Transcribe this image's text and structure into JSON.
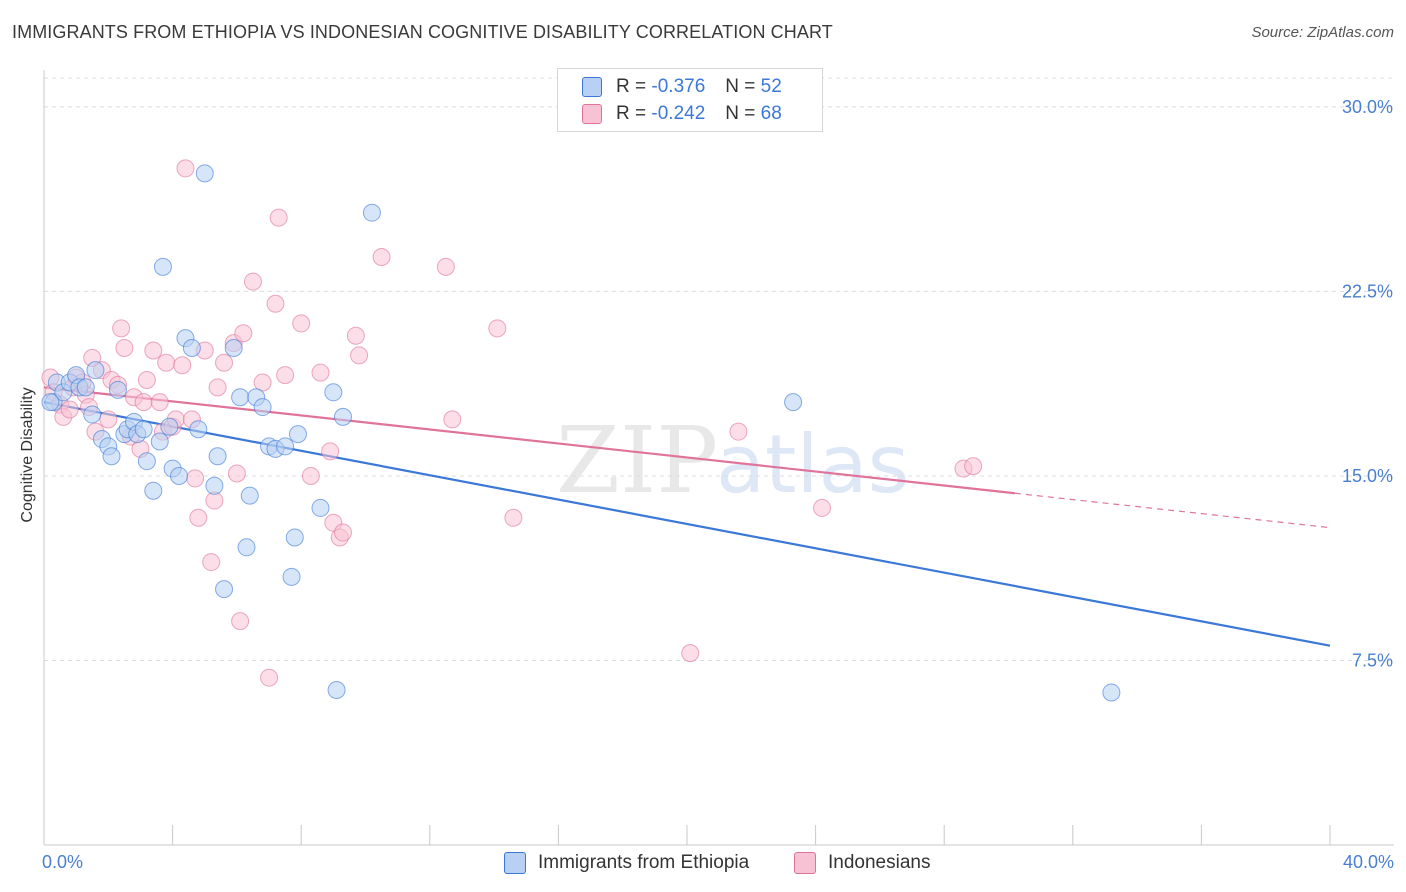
{
  "title": "IMMIGRANTS FROM ETHIOPIA VS INDONESIAN COGNITIVE DISABILITY CORRELATION CHART",
  "source": "Source: ZipAtlas.com",
  "legend": {
    "rows": [
      {
        "r_label": "R =",
        "r_value": "-0.376",
        "n_label": "N =",
        "n_value": "52"
      },
      {
        "r_label": "R =",
        "r_value": "-0.242",
        "n_label": "N =",
        "n_value": "68"
      }
    ]
  },
  "bottom_legend": [
    "Immigrants from Ethiopia",
    "Indonesians"
  ],
  "x_min_label": "0.0%",
  "x_max_label": "40.0%",
  "watermark": {
    "zip": "ZIP",
    "atlas": "atlas"
  },
  "colors": {
    "blue": "#3b78d8",
    "blue_fill": "#b7d0f3",
    "pink": "#e0739a",
    "pink_fill": "#f7c3d4",
    "grid": "#dcdcdc",
    "tick_label": "#4a7fd0"
  },
  "chart_data": {
    "type": "scatter",
    "title": "IMMIGRANTS FROM ETHIOPIA VS INDONESIAN COGNITIVE DISABILITY CORRELATION CHART",
    "xlabel": "",
    "ylabel": "Cognitive Disability",
    "xlim": [
      0,
      40
    ],
    "ylim": [
      0,
      31.5
    ],
    "yticks": [
      7.5,
      15.0,
      22.5,
      30.0
    ],
    "ytick_labels": [
      "7.5%",
      "15.0%",
      "22.5%",
      "30.0%"
    ],
    "grid": true,
    "legend_position": "top-center",
    "series": [
      {
        "name": "Immigrants from Ethiopia",
        "r": -0.376,
        "n": 52,
        "trend": {
          "x0": 0,
          "y0": 18.0,
          "x1": 40,
          "y1": 8.1,
          "solid_to": 40
        },
        "points": [
          [
            0.3,
            18.0
          ],
          [
            0.4,
            18.8
          ],
          [
            0.6,
            18.4
          ],
          [
            0.8,
            18.8
          ],
          [
            1.0,
            19.1
          ],
          [
            1.1,
            18.6
          ],
          [
            1.3,
            18.6
          ],
          [
            1.5,
            17.5
          ],
          [
            1.6,
            19.3
          ],
          [
            1.8,
            16.5
          ],
          [
            2.0,
            16.2
          ],
          [
            2.1,
            15.8
          ],
          [
            2.3,
            18.5
          ],
          [
            2.5,
            16.7
          ],
          [
            2.6,
            16.9
          ],
          [
            2.8,
            17.2
          ],
          [
            2.9,
            16.7
          ],
          [
            3.1,
            16.9
          ],
          [
            3.2,
            15.6
          ],
          [
            3.4,
            14.4
          ],
          [
            3.6,
            16.4
          ],
          [
            3.7,
            23.5
          ],
          [
            3.9,
            17.0
          ],
          [
            4.0,
            15.3
          ],
          [
            4.2,
            15.0
          ],
          [
            4.4,
            20.6
          ],
          [
            4.6,
            20.2
          ],
          [
            4.8,
            16.9
          ],
          [
            5.0,
            27.3
          ],
          [
            5.3,
            14.6
          ],
          [
            5.4,
            15.8
          ],
          [
            5.6,
            10.4
          ],
          [
            5.9,
            20.2
          ],
          [
            6.1,
            18.2
          ],
          [
            6.3,
            12.1
          ],
          [
            6.4,
            14.2
          ],
          [
            6.6,
            18.2
          ],
          [
            6.8,
            17.8
          ],
          [
            7.0,
            16.2
          ],
          [
            7.2,
            16.1
          ],
          [
            7.5,
            16.2
          ],
          [
            7.7,
            10.9
          ],
          [
            7.8,
            12.5
          ],
          [
            7.9,
            16.7
          ],
          [
            8.6,
            13.7
          ],
          [
            9.0,
            18.4
          ],
          [
            9.1,
            6.3
          ],
          [
            9.3,
            17.4
          ],
          [
            10.2,
            25.7
          ],
          [
            23.3,
            18.0
          ],
          [
            33.2,
            6.2
          ],
          [
            0.2,
            18.0
          ]
        ]
      },
      {
        "name": "Indonesians",
        "r": -0.242,
        "n": 68,
        "trend": {
          "x0": 0,
          "y0": 18.6,
          "x1": 40,
          "y1": 12.9,
          "solid_to": 30.2
        },
        "points": [
          [
            0.2,
            19.0
          ],
          [
            0.3,
            18.4
          ],
          [
            0.5,
            17.9
          ],
          [
            0.6,
            17.4
          ],
          [
            0.8,
            17.7
          ],
          [
            0.9,
            18.6
          ],
          [
            1.0,
            19.0
          ],
          [
            1.2,
            18.8
          ],
          [
            1.3,
            18.3
          ],
          [
            1.4,
            17.8
          ],
          [
            1.5,
            19.8
          ],
          [
            1.6,
            16.8
          ],
          [
            1.8,
            19.3
          ],
          [
            2.0,
            17.3
          ],
          [
            2.1,
            18.9
          ],
          [
            2.3,
            18.7
          ],
          [
            2.4,
            21.0
          ],
          [
            2.5,
            20.2
          ],
          [
            2.7,
            16.6
          ],
          [
            2.8,
            18.2
          ],
          [
            3.0,
            16.1
          ],
          [
            3.1,
            18.0
          ],
          [
            3.2,
            18.9
          ],
          [
            3.4,
            20.1
          ],
          [
            3.6,
            18.0
          ],
          [
            3.7,
            16.8
          ],
          [
            3.8,
            19.6
          ],
          [
            4.0,
            17.0
          ],
          [
            4.1,
            17.3
          ],
          [
            4.3,
            19.5
          ],
          [
            4.4,
            27.5
          ],
          [
            4.6,
            17.3
          ],
          [
            4.7,
            14.9
          ],
          [
            4.8,
            13.3
          ],
          [
            5.0,
            20.1
          ],
          [
            5.2,
            11.5
          ],
          [
            5.3,
            14.0
          ],
          [
            5.4,
            18.6
          ],
          [
            5.6,
            19.6
          ],
          [
            5.9,
            20.4
          ],
          [
            6.0,
            15.1
          ],
          [
            6.1,
            9.1
          ],
          [
            6.2,
            20.8
          ],
          [
            6.5,
            22.9
          ],
          [
            6.8,
            18.8
          ],
          [
            7.0,
            6.8
          ],
          [
            7.2,
            22.0
          ],
          [
            7.3,
            25.5
          ],
          [
            7.5,
            19.1
          ],
          [
            8.0,
            21.2
          ],
          [
            8.3,
            15.0
          ],
          [
            8.6,
            19.2
          ],
          [
            8.9,
            16.0
          ],
          [
            9.0,
            13.1
          ],
          [
            9.2,
            12.5
          ],
          [
            9.3,
            12.7
          ],
          [
            9.7,
            20.7
          ],
          [
            9.8,
            19.9
          ],
          [
            10.5,
            23.9
          ],
          [
            12.5,
            23.5
          ],
          [
            12.7,
            17.3
          ],
          [
            14.1,
            21.0
          ],
          [
            14.6,
            13.3
          ],
          [
            20.1,
            7.8
          ],
          [
            21.6,
            16.8
          ],
          [
            24.2,
            13.7
          ],
          [
            28.6,
            15.3
          ],
          [
            28.9,
            15.4
          ]
        ]
      }
    ]
  }
}
